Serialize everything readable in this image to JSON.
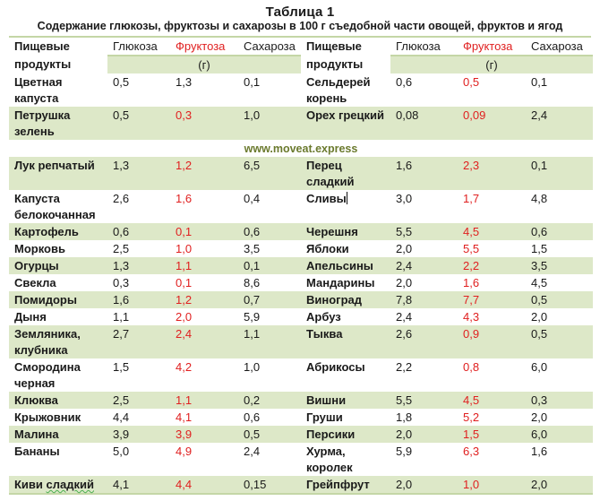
{
  "title": "Таблица 1",
  "subtitle": "Содержание глюкозы, фруктозы и сахарозы в 100 г съедобной части овощей, фруктов и ягод",
  "watermark": "www.moveat.express",
  "colors": {
    "accent_green_bg": "#dde8c8",
    "rule_green": "#c4d6a6",
    "fructose_red": "#e02020",
    "watermark_olive": "#6b7a2e"
  },
  "header": {
    "food_line1": "Пищевые",
    "food_line2": "продукты",
    "glucose": "Глюкоза",
    "fructose": "Фруктоза",
    "sucrose": "Сахароза",
    "unit": "(г)"
  },
  "rows": [
    {
      "left": {
        "name": "Цветная капуста",
        "glucose": "0,5",
        "fructose": "1,3",
        "sucrose": "0,1"
      },
      "right": {
        "name": "Сельдерей корень",
        "glucose": "0,6",
        "fructose": "0,5",
        "sucrose": "0,1"
      }
    },
    {
      "left": {
        "name": "Петрушка зелень",
        "glucose": "0,5",
        "fructose": "0,3",
        "sucrose": "1,0"
      },
      "right": {
        "name": "Орех грецкий",
        "glucose": "0,08",
        "fructose": "0,09",
        "sucrose": "2,4"
      }
    },
    {
      "left": {
        "name": "Лук репчатый",
        "glucose": "1,3",
        "fructose": "1,2",
        "sucrose": "6,5"
      },
      "right": {
        "name": "Перец сладкий",
        "glucose": "1,6",
        "fructose": "2,3",
        "sucrose": "0,1"
      }
    },
    {
      "left": {
        "name": "Капуста белокочанная",
        "glucose": "2,6",
        "fructose": "1,6",
        "sucrose": "0,4"
      },
      "right": {
        "name": "Сливы",
        "glucose": "3,0",
        "fructose": "1,7",
        "sucrose": "4,8"
      }
    },
    {
      "left": {
        "name": "Картофель",
        "glucose": "0,6",
        "fructose": "0,1",
        "sucrose": "0,6"
      },
      "right": {
        "name": "Черешня",
        "glucose": "5,5",
        "fructose": "4,5",
        "sucrose": "0,6"
      }
    },
    {
      "left": {
        "name": "Морковь",
        "glucose": "2,5",
        "fructose": "1,0",
        "sucrose": "3,5"
      },
      "right": {
        "name": "Яблоки",
        "glucose": "2,0",
        "fructose": "5,5",
        "sucrose": "1,5"
      }
    },
    {
      "left": {
        "name": "Огурцы",
        "glucose": "1,3",
        "fructose": "1,1",
        "sucrose": "0,1"
      },
      "right": {
        "name": "Апельсины",
        "glucose": "2,4",
        "fructose": "2,2",
        "sucrose": "3,5"
      }
    },
    {
      "left": {
        "name": "Свекла",
        "glucose": "0,3",
        "fructose": "0,1",
        "sucrose": "8,6"
      },
      "right": {
        "name": "Мандарины",
        "glucose": "2,0",
        "fructose": "1,6",
        "sucrose": "4,5"
      }
    },
    {
      "left": {
        "name": "Помидоры",
        "glucose": "1,6",
        "fructose": "1,2",
        "sucrose": "0,7"
      },
      "right": {
        "name": "Виноград",
        "glucose": "7,8",
        "fructose": "7,7",
        "sucrose": "0,5"
      }
    },
    {
      "left": {
        "name": "Дыня",
        "glucose": "1,1",
        "fructose": "2,0",
        "sucrose": "5,9"
      },
      "right": {
        "name": "Арбуз",
        "glucose": "2,4",
        "fructose": "4,3",
        "sucrose": "2,0"
      }
    },
    {
      "left": {
        "name": "Земляника, клубника",
        "glucose": "2,7",
        "fructose": "2,4",
        "sucrose": "1,1"
      },
      "right": {
        "name": "Тыква",
        "glucose": "2,6",
        "fructose": "0,9",
        "sucrose": "0,5"
      }
    },
    {
      "left": {
        "name": "Смородина черная",
        "glucose": "1,5",
        "fructose": "4,2",
        "sucrose": "1,0"
      },
      "right": {
        "name": "Абрикосы",
        "glucose": "2,2",
        "fructose": "0,8",
        "sucrose": "6,0"
      }
    },
    {
      "left": {
        "name": "Клюква",
        "glucose": "2,5",
        "fructose": "1,1",
        "sucrose": "0,2"
      },
      "right": {
        "name": "Вишни",
        "glucose": "5,5",
        "fructose": "4,5",
        "sucrose": "0,3"
      }
    },
    {
      "left": {
        "name": "Крыжовник",
        "glucose": "4,4",
        "fructose": "4,1",
        "sucrose": "0,6"
      },
      "right": {
        "name": "Груши",
        "glucose": "1,8",
        "fructose": "5,2",
        "sucrose": "2,0"
      }
    },
    {
      "left": {
        "name": "Малина",
        "glucose": "3,9",
        "fructose": "3,9",
        "sucrose": "0,5"
      },
      "right": {
        "name": "Персики",
        "glucose": "2,0",
        "fructose": "1,5",
        "sucrose": "6,0"
      }
    },
    {
      "left": {
        "name": "Бананы",
        "glucose": "5,0",
        "fructose": "4,9",
        "sucrose": "2,4"
      },
      "right": {
        "name": "Хурма, королек",
        "glucose": "5,9",
        "fructose": "6,3",
        "sucrose": "1,6"
      }
    },
    {
      "left": {
        "name_part1": "Киви ",
        "name_part2": "сладкий",
        "glucose": "4,1",
        "fructose": "4,4",
        "sucrose": "0,15"
      },
      "right": {
        "name": "Грейпфрут",
        "glucose": "2,0",
        "fructose": "1,0",
        "sucrose": "2,0"
      }
    }
  ]
}
